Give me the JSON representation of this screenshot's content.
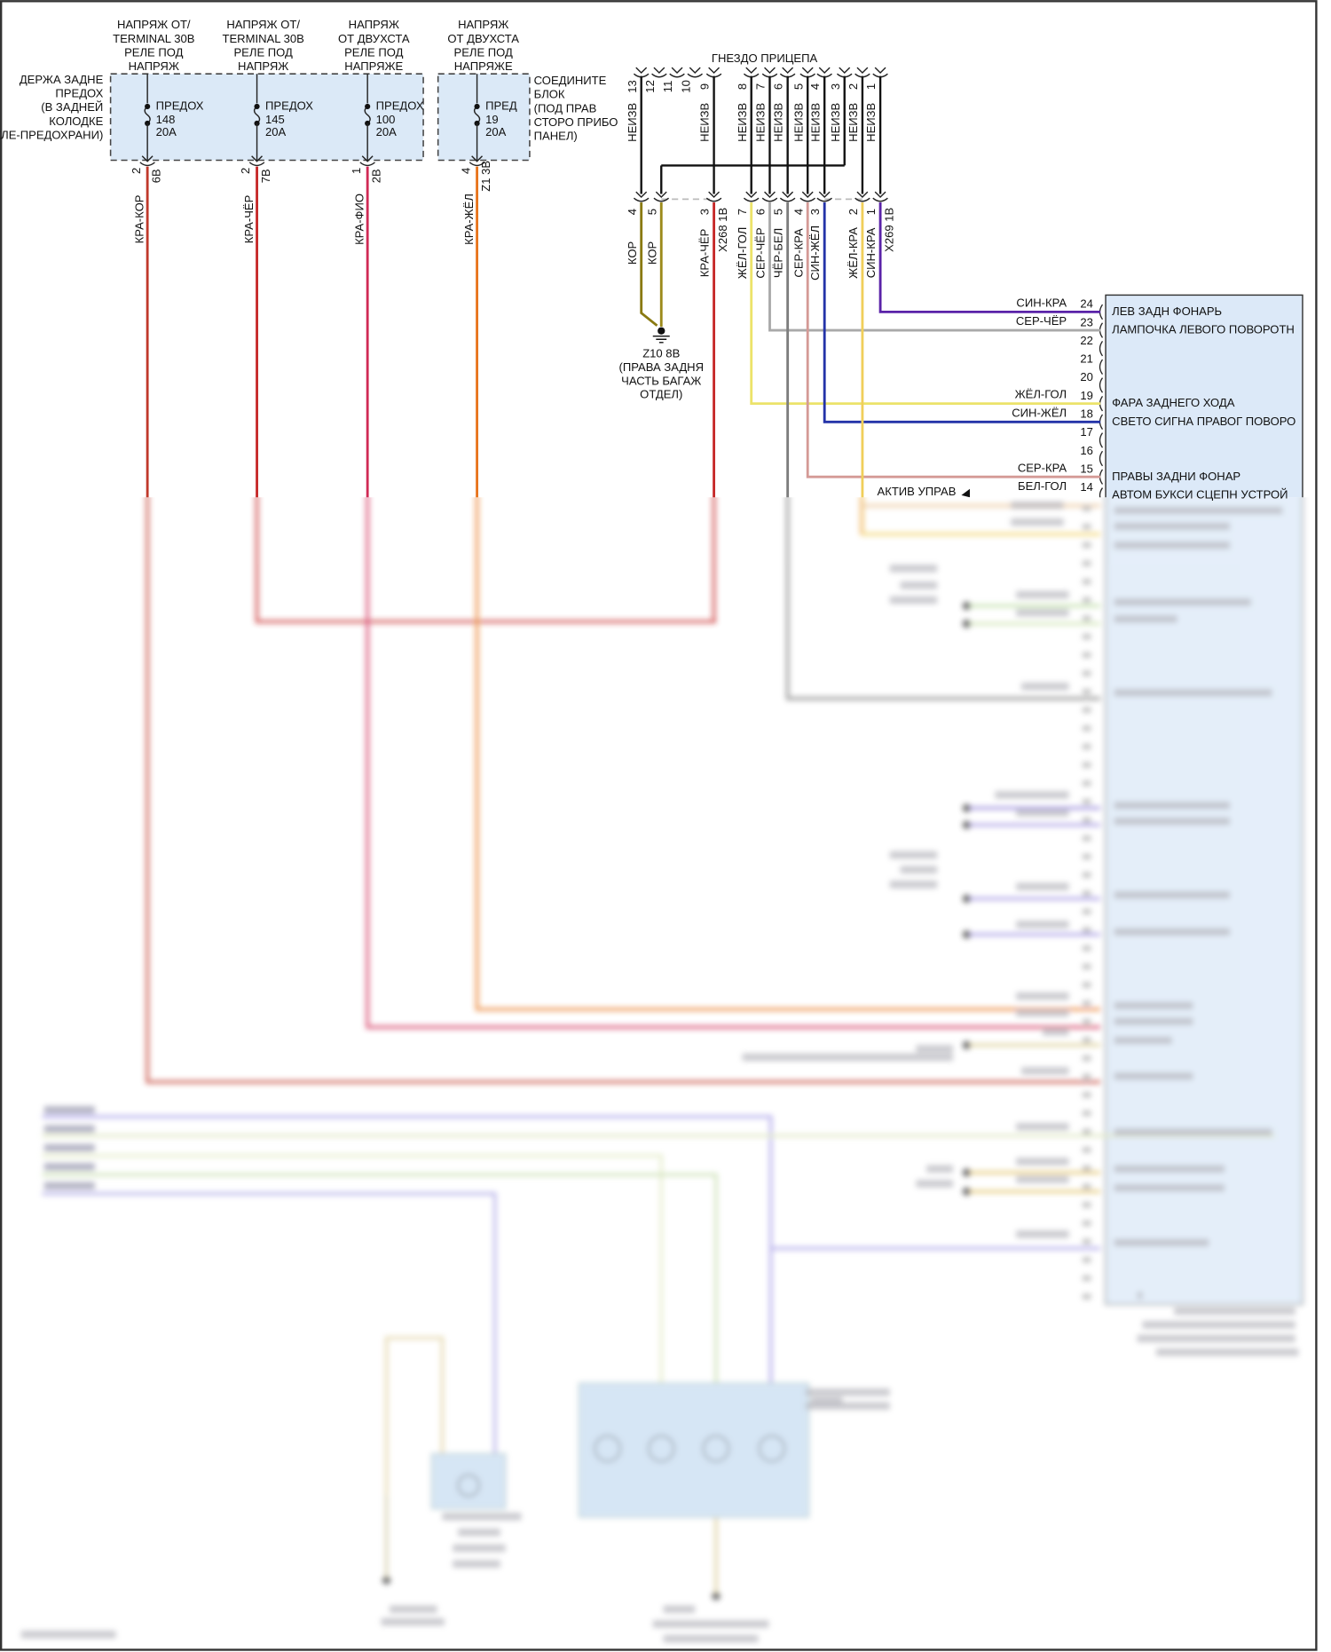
{
  "fuse_block": {
    "label_lines": [
      "ДЕРЖА ЗАДНЕ",
      "ПРЕДОХ",
      "(В ЗАДНЕЙ",
      "КОЛОДКЕ",
      "ЕЛЕ-ПРЕДОХРАНИ)"
    ],
    "connector_label_lines": [
      "СОЕДИНИТЕ",
      "БЛОК",
      "(ПОД ПРАВ",
      "СТОРО ПРИБО",
      "ПАНЕЛ)"
    ],
    "fill_color": "#dbe9f7"
  },
  "fuses": [
    {
      "source": [
        "НАПРЯЖ ОТ/",
        "TERMINAL 30B",
        "РЕЛЕ ПОД",
        "НАПРЯЖ"
      ],
      "name": "ПРЕДОХ",
      "number": "148",
      "rating": "20A",
      "pin": "2",
      "connector": "6B",
      "wire": "КРА-КОР",
      "color": "#c0392b"
    },
    {
      "source": [
        "НАПРЯЖ ОТ/",
        "TERMINAL 30B",
        "РЕЛЕ ПОД",
        "НАПРЯЖ"
      ],
      "name": "ПРЕДОХ",
      "number": "145",
      "rating": "20A",
      "pin": "2",
      "connector": "7B",
      "wire": "КРА-ЧЁР",
      "color": "#c62828"
    },
    {
      "source": [
        "НАПРЯЖ",
        "ОТ ДВУХСТА",
        "РЕЛЕ ПОД",
        "НАПРЯЖЕ"
      ],
      "name": "ПРЕДОХ",
      "number": "100",
      "rating": "20A",
      "pin": "1",
      "connector": "2B",
      "wire": "КРА-ФИО",
      "color": "#d02a55"
    },
    {
      "source": [
        "НАПРЯЖ",
        "ОТ ДВУХСТА",
        "РЕЛЕ ПОД",
        "НАПРЯЖЕ"
      ],
      "name": "ПРЕД",
      "number": "19",
      "rating": "20A",
      "pin": "4",
      "connector": "Z1 3B",
      "wire": "КРА-ЖЁЛ",
      "color": "#e8741c"
    }
  ],
  "trailer_socket": {
    "title": "ГНЕЗДО ПРИЦЕПА",
    "pins": [
      {
        "pin": "13",
        "wire": "НЕИЗВ"
      },
      {
        "pin": "12",
        "wire": ""
      },
      {
        "pin": "11",
        "wire": ""
      },
      {
        "pin": "10",
        "wire": ""
      },
      {
        "pin": "9",
        "wire": "НЕИЗВ"
      },
      {
        "pin": "8",
        "wire": "НЕИЗВ"
      },
      {
        "pin": "7",
        "wire": "НЕИЗВ"
      },
      {
        "pin": "6",
        "wire": "НЕИЗВ"
      },
      {
        "pin": "5",
        "wire": "НЕИЗВ"
      },
      {
        "pin": "4",
        "wire": "НЕИЗВ"
      },
      {
        "pin": "3",
        "wire": "НЕИЗВ"
      },
      {
        "pin": "2",
        "wire": "НЕИЗВ"
      },
      {
        "pin": "1",
        "wire": "НЕИЗВ"
      }
    ]
  },
  "harness": [
    {
      "pin": "4",
      "wire": "КОР",
      "color": "#8a7a12",
      "connector": ""
    },
    {
      "pin": "5",
      "wire": "КОР",
      "color": "#9c8a1a",
      "connector": ""
    },
    {
      "pin": "3",
      "wire": "КРА-ЧЁР",
      "color": "#c62828",
      "connector": "X268 1B"
    },
    {
      "pin": "7",
      "wire": "ЖЁЛ-ГОЛ",
      "color": "#ece36a",
      "connector": ""
    },
    {
      "pin": "6",
      "wire": "СЕР-ЧЁР",
      "color": "#a9a9a9",
      "connector": ""
    },
    {
      "pin": "5",
      "wire": "ЧЁР-БЕЛ",
      "color": "#7d7d7d",
      "connector": ""
    },
    {
      "pin": "4",
      "wire": "СЕР-КРА",
      "color": "#d49a96",
      "connector": ""
    },
    {
      "pin": "3",
      "wire": "СИН-ЖЁЛ",
      "color": "#2433a8",
      "connector": ""
    },
    {
      "pin": "2",
      "wire": "ЖЁЛ-КРА",
      "color": "#f0cf5a",
      "connector": ""
    },
    {
      "pin": "1",
      "wire": "СИН-КРА",
      "color": "#5a22a8",
      "connector": "X269 1B"
    }
  ],
  "ground": {
    "id": "Z10 8B",
    "lines": [
      "(ПРАВА ЗАДНЯ",
      "ЧАСТЬ БАГАЖ",
      "ОТДЕЛ)"
    ]
  },
  "module": {
    "fill_color": "#dce9f8",
    "pins": [
      {
        "pin": "24",
        "wire": "СИН-КРА",
        "function": "ЛЕВ ЗАДН ФОНАРЬ"
      },
      {
        "pin": "23",
        "wire": "СЕР-ЧЁР",
        "function": "ЛАМПОЧКА ЛЕВОГО ПОВОРОТН"
      },
      {
        "pin": "22",
        "wire": "",
        "function": ""
      },
      {
        "pin": "21",
        "wire": "",
        "function": ""
      },
      {
        "pin": "20",
        "wire": "",
        "function": ""
      },
      {
        "pin": "19",
        "wire": "ЖЁЛ-ГОЛ",
        "function": "ФАРА ЗАДНЕГО ХОДА"
      },
      {
        "pin": "18",
        "wire": "СИН-ЖЁЛ",
        "function": "СВЕТО СИГНА ПРАВОГ ПОВОРО"
      },
      {
        "pin": "17",
        "wire": "",
        "function": ""
      },
      {
        "pin": "16",
        "wire": "",
        "function": ""
      },
      {
        "pin": "15",
        "wire": "СЕР-КРА",
        "function": "ПРАВЫ ЗАДНИ ФОНАР"
      },
      {
        "pin": "14",
        "wire": "БЕЛ-ГОЛ",
        "function": "АВТОМ БУКСИ СЦЕПН УСТРОЙ"
      }
    ]
  },
  "active_label": "АКТИВ УПРАВ"
}
